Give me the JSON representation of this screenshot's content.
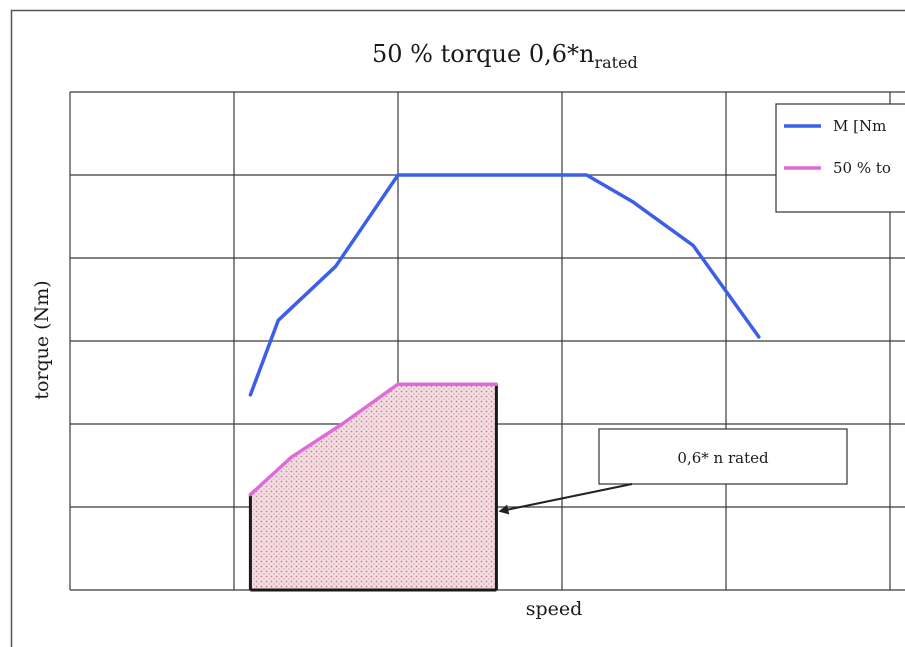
{
  "chart_data": {
    "type": "line",
    "title": {
      "main": "50 % torque 0,6*n",
      "subscript": "rated"
    },
    "xlabel": "speed",
    "ylabel": "torque (Nm)",
    "grid": true,
    "legend_position": "top-right",
    "xlim": [
      0,
      6
    ],
    "ylim": [
      0,
      6
    ],
    "series": [
      {
        "name": "M [Nm",
        "color": "#3d5ee8",
        "points": [
          [
            1.1,
            2.35
          ],
          [
            1.27,
            3.25
          ],
          [
            1.62,
            3.9
          ],
          [
            2.0,
            5.0
          ],
          [
            3.15,
            5.0
          ],
          [
            3.43,
            4.68
          ],
          [
            3.8,
            4.15
          ],
          [
            4.2,
            3.05
          ]
        ]
      },
      {
        "name": "50 % to",
        "color": "#e06ad8",
        "points": [
          [
            1.1,
            1.15
          ],
          [
            1.35,
            1.6
          ],
          [
            1.66,
            2.0
          ],
          [
            2.0,
            2.48
          ],
          [
            2.6,
            2.48
          ]
        ]
      }
    ],
    "shaded_region": {
      "points": [
        [
          1.1,
          0
        ],
        [
          1.1,
          1.15
        ],
        [
          1.35,
          1.6
        ],
        [
          1.66,
          2.0
        ],
        [
          2.0,
          2.48
        ],
        [
          2.6,
          2.48
        ],
        [
          2.6,
          0
        ]
      ],
      "fill": "#e9c4cc"
    },
    "annotation": {
      "text": "0,6* n rated",
      "target": [
        2.6,
        0.95
      ]
    }
  }
}
